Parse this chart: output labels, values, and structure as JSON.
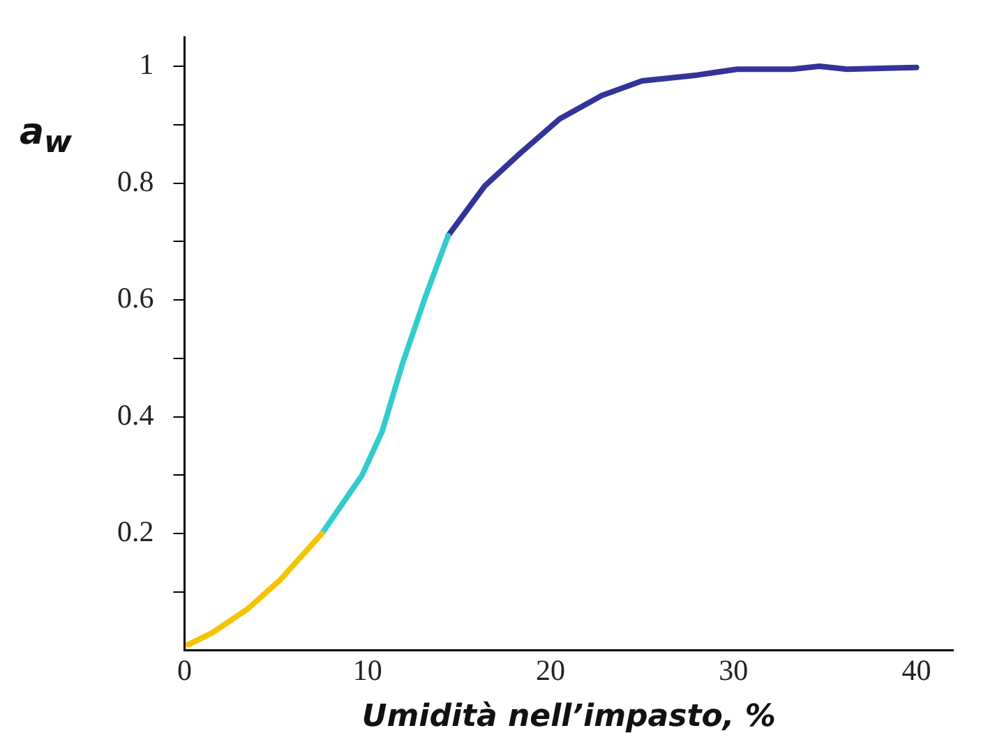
{
  "chart_data": {
    "type": "line",
    "xlabel": "Umidità nell’impasto, %",
    "ylabel": "a$_{w}$",
    "xlim": [
      0,
      42
    ],
    "xticks": [
      0,
      10,
      20,
      30,
      40
    ],
    "ylim": [
      0,
      1.05
    ],
    "yticks": [
      {
        "value": 0.1,
        "label": null
      },
      0.2,
      {
        "value": 0.3,
        "label": null
      },
      0.4,
      {
        "value": 0.5,
        "label": null
      },
      0.6,
      {
        "value": 0.7,
        "label": null
      },
      0.8,
      {
        "value": 0.9,
        "label": null
      },
      1
    ],
    "grid": false,
    "legend": false,
    "marker": "none",
    "line_style": "solid",
    "series": [
      {
        "color": "#f5c400",
        "x": [
          0.2,
          1.5,
          3.4,
          5.2,
          7.5
        ],
        "values": [
          0.01,
          0.03,
          0.07,
          0.12,
          0.2
        ]
      },
      {
        "color": "#33cccc",
        "x": [
          7.5,
          9.7,
          10.8,
          11.9,
          13.1,
          14.4
        ],
        "values": [
          0.2,
          0.3,
          0.375,
          0.49,
          0.6,
          0.71
        ]
      },
      {
        "color": "#333399",
        "x": [
          14.4,
          16.4,
          18.3,
          20.5,
          22.8,
          25,
          28,
          30.2,
          33.2,
          34.7,
          36.2,
          40
        ],
        "values": [
          0.71,
          0.795,
          0.85,
          0.91,
          0.95,
          0.975,
          0.985,
          0.995,
          0.995,
          1,
          0.995,
          0.998
        ]
      }
    ]
  }
}
